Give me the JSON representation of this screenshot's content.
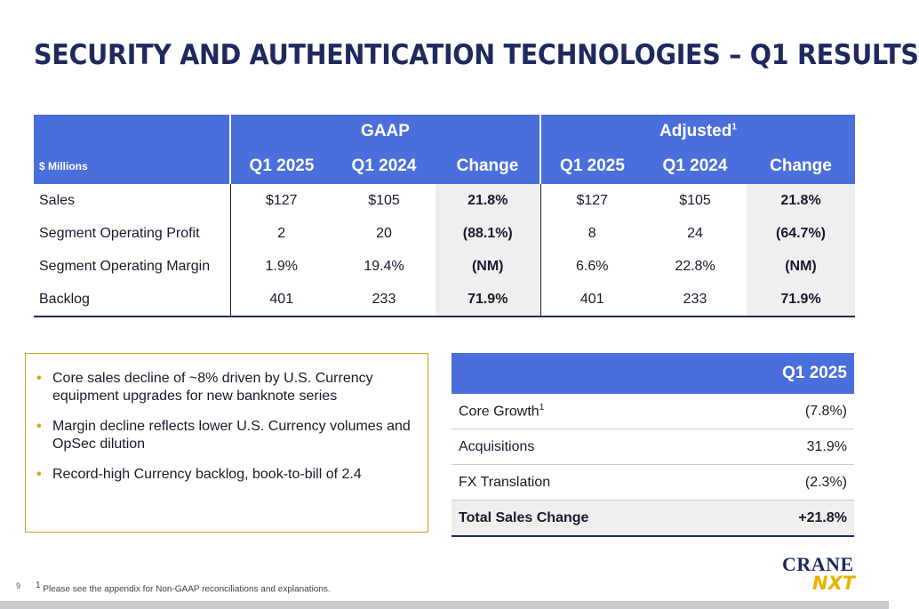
{
  "title": "SECURITY AND AUTHENTICATION TECHNOLOGIES – Q1 RESULTS",
  "results": {
    "units_label": "$ Millions",
    "group_gaap": "GAAP",
    "group_adjusted": "Adjusted",
    "group_adjusted_sup": "1",
    "columns": [
      "Q1 2025",
      "Q1 2024",
      "Change",
      "Q1 2025",
      "Q1 2024",
      "Change"
    ],
    "rows": [
      {
        "label": "Sales",
        "cells": [
          "$127",
          "$105",
          "21.8%",
          "$127",
          "$105",
          "21.8%"
        ]
      },
      {
        "label": "Segment Operating Profit",
        "cells": [
          "2",
          "20",
          "(88.1%)",
          "8",
          "24",
          "(64.7%)"
        ]
      },
      {
        "label": "Segment Operating Margin",
        "cells": [
          "1.9%",
          "19.4%",
          "(NM)",
          "6.6%",
          "22.8%",
          "(NM)"
        ]
      },
      {
        "label": "Backlog",
        "cells": [
          "401",
          "233",
          "71.9%",
          "401",
          "233",
          "71.9%"
        ]
      }
    ]
  },
  "bullets": [
    "Core sales decline of ~8% driven by U.S. Currency equipment upgrades for new banknote series",
    "Margin decline reflects lower U.S. Currency volumes and OpSec dilution",
    "Record-high Currency backlog, book-to-bill of 2.4"
  ],
  "sales_change": {
    "header": "Q1 2025",
    "rows": [
      {
        "label": "Core Growth",
        "sup": "1",
        "value": "(7.8%)"
      },
      {
        "label": "Acquisitions",
        "sup": "",
        "value": "31.9%"
      },
      {
        "label": "FX Translation",
        "sup": "",
        "value": "(2.3%)"
      }
    ],
    "total": {
      "label": "Total Sales Change",
      "value": "+21.8%"
    }
  },
  "page_number": "9",
  "footnote_sup": "1",
  "footnote": "Please see the appendix for Non-GAAP reconciliations and explanations.",
  "logo": {
    "line1": "CRANE",
    "line2": "NXT"
  },
  "colors": {
    "navy": "#1e2a5e",
    "header_blue": "#4a6fdc",
    "accent_gold": "#e0a800"
  }
}
